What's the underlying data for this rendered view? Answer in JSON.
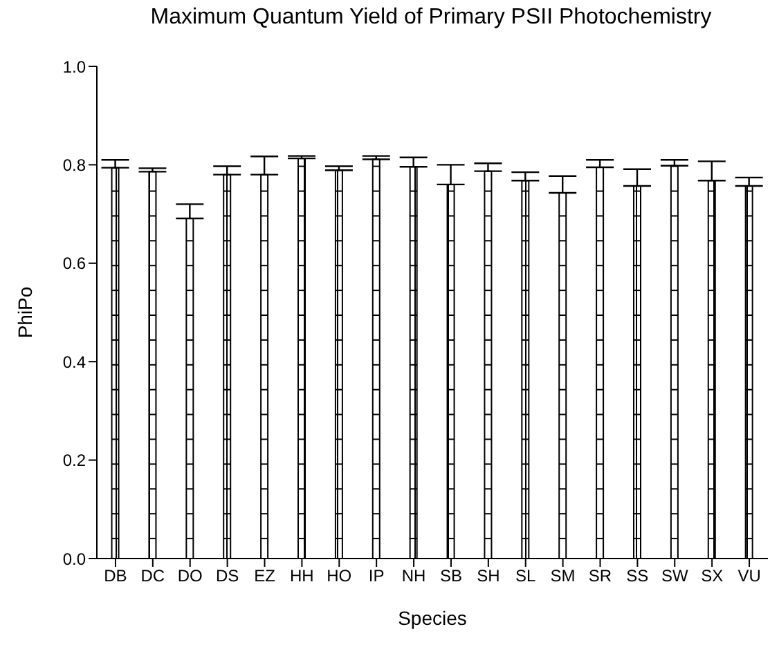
{
  "chart_data": {
    "type": "bar",
    "title": "Maximum Quantum Yield of Primary PSII Photochemistry",
    "xlabel": "Species",
    "ylabel": "PhiPo",
    "categories": [
      "DB",
      "DC",
      "DO",
      "DS",
      "EZ",
      "HH",
      "HO",
      "IP",
      "NH",
      "SB",
      "SH",
      "SL",
      "SM",
      "SR",
      "SS",
      "SW",
      "SX",
      "VU"
    ],
    "values": [
      0.794,
      0.786,
      0.691,
      0.78,
      0.78,
      0.813,
      0.789,
      0.811,
      0.796,
      0.76,
      0.787,
      0.768,
      0.743,
      0.795,
      0.757,
      0.798,
      0.768,
      0.757
    ],
    "errors": [
      [
        0.794,
        0.81
      ],
      [
        0.786,
        0.793
      ],
      [
        0.691,
        0.72
      ],
      [
        0.78,
        0.797
      ],
      [
        0.78,
        0.817
      ],
      [
        0.813,
        0.818
      ],
      [
        0.789,
        0.797
      ],
      [
        0.811,
        0.818
      ],
      [
        0.796,
        0.815
      ],
      [
        0.76,
        0.8
      ],
      [
        0.787,
        0.803
      ],
      [
        0.768,
        0.785
      ],
      [
        0.743,
        0.777
      ],
      [
        0.795,
        0.81
      ],
      [
        0.757,
        0.791
      ],
      [
        0.798,
        0.81
      ],
      [
        0.768,
        0.807
      ],
      [
        0.757,
        0.774
      ]
    ],
    "color": "#000000",
    "ylim": [
      0,
      1
    ],
    "yticks": [
      {
        "value": 0,
        "label": "0.0"
      },
      0.2,
      0.4,
      0.6,
      0.8,
      {
        "value": 1,
        "label": "1.0"
      }
    ]
  }
}
